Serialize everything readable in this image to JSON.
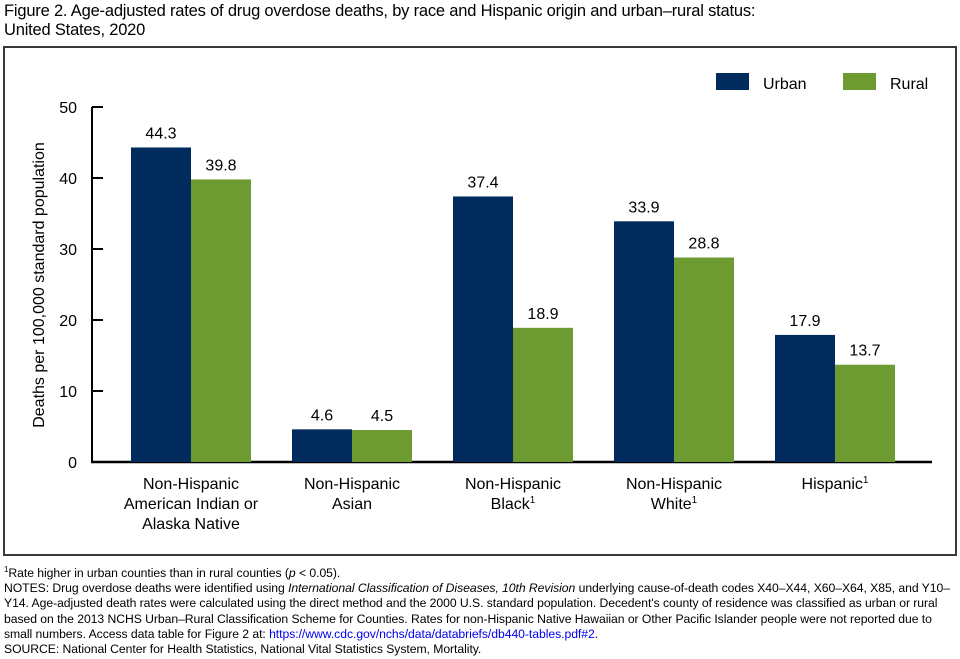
{
  "figure": {
    "title_line1": "Figure 2. Age-adjusted rates of drug overdose deaths, by race and Hispanic origin and urban–rural status:",
    "title_line2": "United States, 2020"
  },
  "colors": {
    "urban": "#002b5c",
    "rural": "#6d9a31"
  },
  "chart_data": {
    "type": "bar",
    "title": "Age-adjusted rates of drug overdose deaths, by race and Hispanic origin and urban–rural status: United States, 2020",
    "xlabel": "",
    "ylabel": "Deaths per 100,000 standard population",
    "ylim": [
      0,
      50
    ],
    "yticks": [
      0,
      10,
      20,
      30,
      40,
      50
    ],
    "grid": false,
    "legend": {
      "placement": "top-right",
      "entries": [
        "Urban",
        "Rural"
      ]
    },
    "categories": [
      {
        "lines": [
          "Non-Hispanic",
          "American Indian or",
          "Alaska Native"
        ],
        "footnote": ""
      },
      {
        "lines": [
          "Non-Hispanic",
          "Asian"
        ],
        "footnote": ""
      },
      {
        "lines": [
          "Non-Hispanic",
          "Black"
        ],
        "footnote": "1"
      },
      {
        "lines": [
          "Non-Hispanic",
          "White"
        ],
        "footnote": "1"
      },
      {
        "lines": [
          "Hispanic"
        ],
        "footnote": "1"
      }
    ],
    "series": [
      {
        "name": "Urban",
        "values": [
          44.3,
          4.6,
          37.4,
          33.9,
          17.9
        ]
      },
      {
        "name": "Rural",
        "values": [
          39.8,
          4.5,
          18.9,
          28.8,
          13.7
        ]
      }
    ],
    "value_labels": [
      [
        "44.3",
        "4.6",
        "37.4",
        "33.9",
        "17.9"
      ],
      [
        "39.8",
        "4.5",
        "18.9",
        "28.8",
        "13.7"
      ]
    ]
  },
  "footnotes": {
    "sup1": "1",
    "line1_pre": "Rate higher in urban counties than in rural counties (",
    "line1_p": "p",
    "line1_post": " < 0.05).",
    "notes_pre": "NOTES: Drug overdose deaths were identified using ",
    "notes_italic": "International Classification of Diseases, 10th Revision",
    "notes_mid": " underlying cause-of-death codes X40–X44, X60–X64, X85, and Y10–Y14. Age-adjusted death rates were calculated using the direct method and the 2000 U.S. standard population. Decedent's county of residence was classified as urban or rural based on the 2013 NCHS Urban–Rural Classification Scheme for Counties. Rates for non-Hispanic Native Hawaiian or Other Pacific Islander people were not reported due to small numbers. Access data table for Figure 2 at: ",
    "notes_link": "https://www.cdc.gov/nchs/data/databriefs/db440-tables.pdf#2",
    "notes_end": ".",
    "source": "SOURCE: National Center for Health Statistics, National Vital Statistics System, Mortality."
  }
}
